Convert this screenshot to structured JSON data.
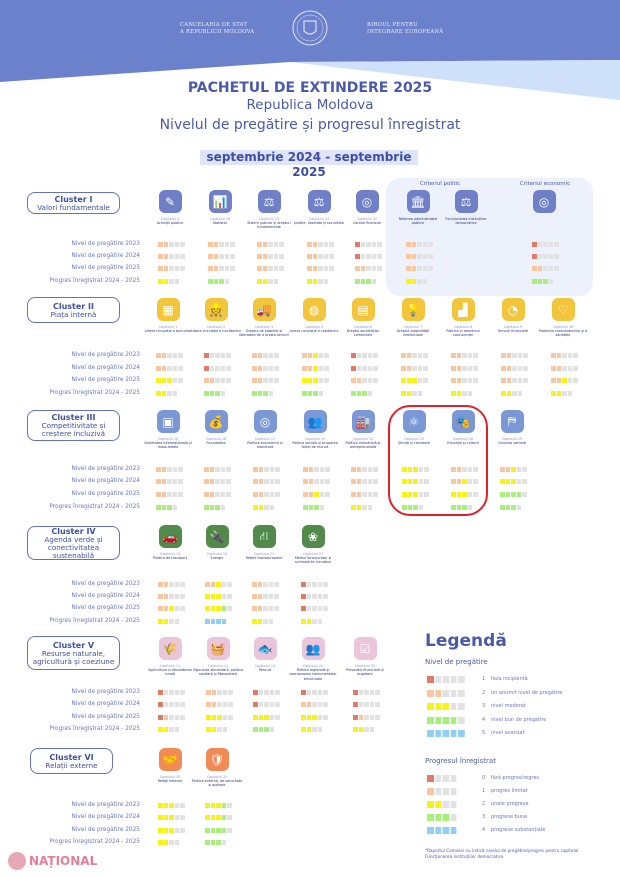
{
  "header": {
    "left_institution": [
      "Cancelaria de stat",
      "A Republicii Moldova"
    ],
    "right_institution": [
      "Biroul pentru",
      "Integrare Europeană"
    ],
    "emblem": "moldova-coat-of-arms-seal"
  },
  "title": {
    "line1": "PACHETUL DE EXTINDERE 2025",
    "line2": "Republica Moldova",
    "line3": "Nivelul de pregătire și progresul înregistrat",
    "period": "septembrie 2024  - septembrie 2025"
  },
  "row_labels": [
    "Nivel de pregătire 2023",
    "Nivel de pregătire 2024",
    "Nivel de pregătire 2025",
    "Progres înregistrat 2024 - 2025"
  ],
  "colors": {
    "level": [
      "#e2e2e2",
      "#e07b6a",
      "#f8c7a2",
      "#f7f21a",
      "#a8ef7c",
      "#92cff0"
    ],
    "cluster_icon": [
      "#6f80c8",
      "#f2c53d",
      "#7b98d6",
      "#518a4b",
      "#ebc5da",
      "#f28a55"
    ],
    "highlight_ring": "#e0202a"
  },
  "cluster1_criteria": {
    "political": "Criteriul politic",
    "economic": "Criteriul economic"
  },
  "clusters": [
    {
      "name": "Cluster I",
      "subtitle": "Valori fundamentale",
      "chapters": [
        {
          "num": "Capitolul 5",
          "name": "Achiziții publice",
          "icon": "document-pen-icon",
          "glyph": "✎",
          "levels": [
            2,
            2,
            2
          ],
          "progress": 2
        },
        {
          "num": "Capitolul 18",
          "name": "Statistici",
          "icon": "chart-hand-icon",
          "glyph": "📊",
          "levels": [
            2,
            2,
            2
          ],
          "progress": 3
        },
        {
          "num": "Capitolul 23",
          "name": "Sistem judiciar și drepturi fundamentale",
          "icon": "gavel-icon",
          "glyph": "⚖",
          "levels": [
            2,
            2,
            2
          ],
          "progress": 2
        },
        {
          "num": "Capitolul 24",
          "name": "Justiție, libertate și securitate",
          "icon": "scales-icon",
          "glyph": "⚖",
          "levels": [
            2,
            2,
            2
          ],
          "progress": 2
        },
        {
          "num": "Capitolul 32",
          "name": "Control financiar",
          "icon": "coins-icon",
          "glyph": "◎",
          "levels": [
            1,
            1,
            2
          ],
          "progress": 3
        },
        {
          "num": "",
          "name": "Reforma administrației publice",
          "icon": "institution-building-icon",
          "glyph": "🏛",
          "levels": [
            2,
            2,
            2
          ],
          "progress": 2
        },
        {
          "num": "",
          "name": "Funcționarea instituțiilor democratice",
          "icon": "gavel-icon",
          "glyph": "⚖",
          "levels": null,
          "progress": null
        },
        {
          "num": "",
          "name": "",
          "icon": "coins-icon",
          "glyph": "◎",
          "levels": [
            1,
            1,
            2
          ],
          "progress": 3
        }
      ]
    },
    {
      "name": "Cluster II",
      "subtitle": "Piața internă",
      "chapters": [
        {
          "num": "Capitolul 1",
          "name": "Libera circulație a bunurilor",
          "icon": "boxes-icon",
          "glyph": "▦",
          "levels": [
            2,
            2,
            3
          ],
          "progress": 2
        },
        {
          "num": "Capitolul 2",
          "name": "Libera circulație a lucrătorilor",
          "icon": "worker-icon",
          "glyph": "👷",
          "levels": [
            1,
            1,
            2
          ],
          "progress": 3
        },
        {
          "num": "Capitolul 3",
          "name": "Dreptul de stabilire și libertatea de a presta servicii",
          "icon": "delivery-truck-icon",
          "glyph": "🚚",
          "levels": [
            2,
            2,
            2
          ],
          "progress": 3
        },
        {
          "num": "Capitolul 4",
          "name": "Libera circulație a capitalului",
          "icon": "globe-icon",
          "glyph": "◍",
          "levels": [
            2.5,
            2.5,
            3
          ],
          "progress": 3
        },
        {
          "num": "Capitolul 6",
          "name": "Dreptul societăților comerciale",
          "icon": "contract-icon",
          "glyph": "▤",
          "levels": [
            1,
            1,
            2
          ],
          "progress": 3
        },
        {
          "num": "Capitolul 7",
          "name": "Dreptul proprietății intelectuale",
          "icon": "lightbulb-icon",
          "glyph": "💡",
          "levels": [
            2,
            2,
            3
          ],
          "progress": 2
        },
        {
          "num": "Capitolul 8",
          "name": "Politica în domeniul concurenței",
          "icon": "podium-icon",
          "glyph": "▟",
          "levels": [
            2,
            2,
            2
          ],
          "progress": 2
        },
        {
          "num": "Capitolul 9",
          "name": "Servicii financiare",
          "icon": "finance-icon",
          "glyph": "◔",
          "levels": [
            2,
            2,
            2
          ],
          "progress": 2
        },
        {
          "num": "Capitolul 28",
          "name": "Protecția consumatorilor și a sănătății",
          "icon": "protection-hands-icon",
          "glyph": "♡",
          "levels": [
            2,
            2,
            2.5
          ],
          "progress": 2
        }
      ]
    },
    {
      "name": "Cluster III",
      "subtitle": "Competitivitate și creștere incluzivă",
      "chapters": [
        {
          "num": "Capitolul 10",
          "name": "Societatea informațională și mass-media",
          "icon": "newspaper-icon",
          "glyph": "▣",
          "levels": [
            2,
            2,
            2
          ],
          "progress": 3
        },
        {
          "num": "Capitolul 16",
          "name": "Fiscalitatea",
          "icon": "money-bag-icon",
          "glyph": "💰",
          "levels": [
            2,
            2,
            2
          ],
          "progress": 3
        },
        {
          "num": "Capitolul 17",
          "name": "Politica economică și monetară",
          "icon": "coins-icon",
          "glyph": "◎",
          "levels": [
            2,
            2,
            2
          ],
          "progress": 2
        },
        {
          "num": "Capitolul 19",
          "name": "Politica socială și ocuparea forței de muncă",
          "icon": "people-icon",
          "glyph": "👥",
          "levels": [
            2,
            2,
            2.5
          ],
          "progress": 3
        },
        {
          "num": "Capitolul 20",
          "name": "Politica industrială și antreprenorială",
          "icon": "factory-icon",
          "glyph": "🏭",
          "levels": [
            2,
            2,
            2
          ],
          "progress": 2
        },
        {
          "num": "Capitolul 25",
          "name": "Știință și cercetare",
          "icon": "molecule-icon",
          "glyph": "⚛",
          "levels": [
            3,
            3,
            3
          ],
          "progress": 3
        },
        {
          "num": "Capitolul 26",
          "name": "Educație și cultură",
          "icon": "theatre-masks-icon",
          "glyph": "🎭",
          "levels": [
            2,
            2.5,
            3
          ],
          "progress": 3
        },
        {
          "num": "Capitolul 29",
          "name": "Uniunea vamală",
          "icon": "customs-barrier-icon",
          "glyph": "⛿",
          "levels": [
            2.5,
            3,
            4
          ],
          "progress": 3
        }
      ]
    },
    {
      "name": "Cluster IV",
      "subtitle": "Agenda verde și conectivitatea sustenabilă",
      "chapters": [
        {
          "num": "Capitolul 14",
          "name": "Politica de transport",
          "icon": "car-icon",
          "glyph": "🚗",
          "levels": [
            2,
            2,
            2.5
          ],
          "progress": 2
        },
        {
          "num": "Capitolul 15",
          "name": "Energie",
          "icon": "plug-icon",
          "glyph": "🔌",
          "levels": [
            2.5,
            3,
            3.5
          ],
          "progress": 4
        },
        {
          "num": "Capitolul 21",
          "name": "Rețele transeuropene",
          "icon": "road-icon",
          "glyph": "⛙",
          "levels": [
            2,
            2,
            2
          ],
          "progress": 2
        },
        {
          "num": "Capitolul 27",
          "name": "Mediul înconjurător și schimbările climatice",
          "icon": "environment-icon",
          "glyph": "❀",
          "levels": [
            1,
            1,
            1
          ],
          "progress": 2
        }
      ]
    },
    {
      "name": "Cluster V",
      "subtitle": "Resurse naturale, agricultură și coeziune",
      "chapters": [
        {
          "num": "Capitolul 11",
          "name": "Agricultura și dezvoltarea rurală",
          "icon": "farm-field-icon",
          "glyph": "🌾",
          "levels": [
            1,
            1,
            1.5
          ],
          "progress": 2
        },
        {
          "num": "Capitolul 12",
          "name": "Siguranța alimentară, politica sanitară și fitosanitară",
          "icon": "food-basket-icon",
          "glyph": "🧺",
          "levels": [
            2,
            2,
            3
          ],
          "progress": 2
        },
        {
          "num": "Capitolul 13",
          "name": "Pescuit",
          "icon": "fish-icon",
          "glyph": "🐟",
          "levels": [
            1,
            1,
            3
          ],
          "progress": 3
        },
        {
          "num": "Capitolul 22",
          "name": "Politica regională și coordonarea instrumentelor structurale",
          "icon": "region-people-icon",
          "glyph": "👥",
          "levels": [
            1,
            2,
            3
          ],
          "progress": 2
        },
        {
          "num": "Capitolul 33",
          "name": "Prevederi financiare și bugetare",
          "icon": "checklist-icon",
          "glyph": "☑",
          "levels": [
            1,
            1,
            1.5
          ],
          "progress": 2
        }
      ]
    },
    {
      "name": "Cluster VI",
      "subtitle": "Relații externe",
      "chapters": [
        {
          "num": "Capitolul 30",
          "name": "Relații externe",
          "icon": "handshake-icon",
          "glyph": "🤝",
          "levels": [
            3,
            3,
            3
          ],
          "progress": 2
        },
        {
          "num": "Capitolul 31",
          "name": "Politica externă, de securitate și apărare",
          "icon": "shield-check-icon",
          "glyph": "🛡",
          "levels": [
            3.5,
            3.5,
            4
          ],
          "progress": 3
        }
      ]
    }
  ],
  "legend": {
    "title": "Legendă",
    "level_title": "Nivel de pregătire",
    "levels": [
      {
        "n": "1",
        "label": "faza incipientă"
      },
      {
        "n": "2",
        "label": "un anumit nivel de pregătire"
      },
      {
        "n": "3",
        "label": "nivel moderat"
      },
      {
        "n": "4",
        "label": "nivel bun de pregătire"
      },
      {
        "n": "5",
        "label": "nivel avansat"
      }
    ],
    "progress_title": "Progresul  înregistrat",
    "progress": [
      {
        "n": "0",
        "label": "fără progres/regres"
      },
      {
        "n": "1",
        "label": "progres limitat"
      },
      {
        "n": "2",
        "label": "unele progrese"
      },
      {
        "n": "3",
        "label": "progrese bune"
      },
      {
        "n": "4",
        "label": "progrese substanțiale"
      }
    ],
    "note": "*Raportul Comisiei nu indică nivelul de pregătire/progres pentru capitolul Funcționarea instituțiilor democratice"
  },
  "watermark": "NAȚIONAL"
}
